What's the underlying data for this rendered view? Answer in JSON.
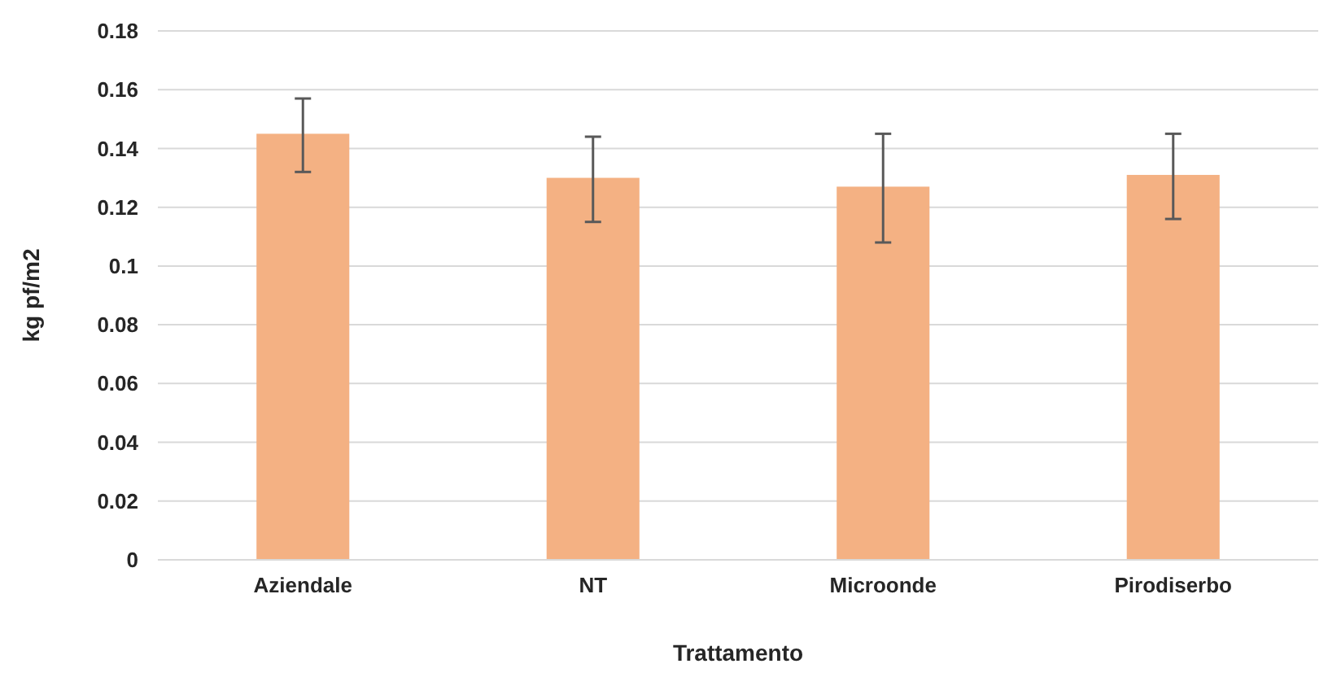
{
  "chart_data": {
    "type": "bar",
    "xlabel": "Trattamento",
    "ylabel": "kg pf/m2",
    "categories": [
      "Aziendale",
      "NT",
      "Microonde",
      "Pirodiserbo"
    ],
    "values": [
      0.145,
      0.13,
      0.127,
      0.131
    ],
    "errors": [
      [
        0.132,
        0.157
      ],
      [
        0.115,
        0.144
      ],
      [
        0.108,
        0.145
      ],
      [
        0.116,
        0.145
      ]
    ],
    "color": "#f4b183",
    "ylim": [
      0,
      0.18
    ],
    "yticks": [
      {
        "value": 0,
        "label": "0"
      },
      {
        "value": 0.02,
        "label": "0.02"
      },
      {
        "value": 0.04,
        "label": "0.04"
      },
      {
        "value": 0.06,
        "label": "0.06"
      },
      {
        "value": 0.08,
        "label": "0.08"
      },
      {
        "value": 0.1,
        "label": "0.1"
      },
      {
        "value": 0.12,
        "label": "0.12"
      },
      {
        "value": 0.14,
        "label": "0.14"
      },
      {
        "value": 0.16,
        "label": "0.16"
      },
      {
        "value": 0.18,
        "label": "0.18"
      }
    ],
    "grid": "y"
  }
}
